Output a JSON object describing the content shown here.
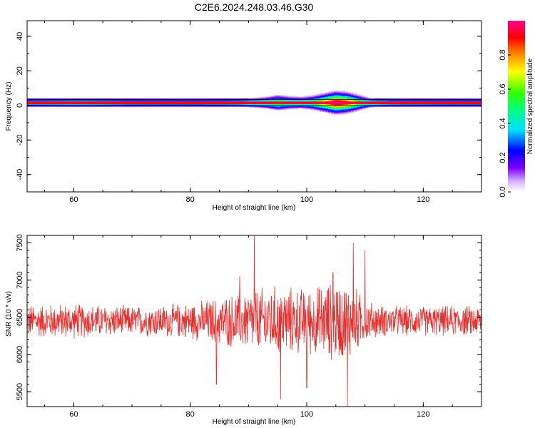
{
  "title": "C2E6.2024.248.03.46.G30",
  "colors": {
    "snr_line": "#e8302f",
    "axis": "#000000"
  },
  "chart_data": [
    {
      "type": "heatmap",
      "xlabel": "Height of straight line (km)",
      "ylabel": "Frequency (Hz)",
      "xlim": [
        52,
        130
      ],
      "ylim": [
        -50,
        49
      ],
      "xticks": [
        "60",
        "80",
        "100",
        "120"
      ],
      "yticks": [
        "40",
        "20",
        "0",
        "-20",
        "-40"
      ],
      "colorbar": {
        "label": "Normalized spectral amplitude",
        "range": [
          0,
          1
        ],
        "ticks": [
          "0.0",
          "0.2",
          "0.4",
          "0.6",
          "0.8"
        ]
      },
      "band": {
        "frequency_hz": 1.5,
        "halfwidth_hz": 2
      },
      "amplitude_by_height": {
        "height_km": [
          52,
          60,
          65,
          70,
          80,
          88,
          93,
          95,
          97,
          99,
          101,
          103,
          105,
          107,
          109,
          111,
          115,
          120,
          130
        ],
        "value": [
          0.25,
          0.3,
          0.28,
          0.22,
          0.2,
          0.25,
          0.45,
          0.6,
          0.5,
          0.45,
          0.55,
          0.75,
          0.95,
          0.85,
          0.6,
          0.35,
          0.25,
          0.22,
          0.2
        ]
      }
    },
    {
      "type": "line",
      "xlabel": "Height of straight line (km)",
      "ylabel": "SNR (10 * v/v)",
      "xlim": [
        52,
        130
      ],
      "ylim": [
        5300,
        7600
      ],
      "xticks": [
        "60",
        "80",
        "100",
        "120"
      ],
      "yticks": [
        "7500",
        "7000",
        "6500",
        "6000",
        "5500"
      ],
      "series": [
        {
          "mean": 6450,
          "amplitude_envelope": {
            "height_km": [
              52,
              60,
              70,
              78,
              82,
              88,
              94,
              100,
              105,
              108,
              110,
              113,
              120,
              130
            ],
            "halfwidth": [
              250,
              260,
              220,
              250,
              300,
              420,
              520,
              480,
              600,
              550,
              300,
              230,
              220,
              230
            ]
          },
          "spikes": [
            {
              "x": 91,
              "y": 7600
            },
            {
              "x": 95.5,
              "y": 5400
            },
            {
              "x": 84.5,
              "y": 5600
            },
            {
              "x": 107,
              "y": 5300
            },
            {
              "x": 108,
              "y": 7500
            },
            {
              "x": 110,
              "y": 7400
            },
            {
              "x": 104.5,
              "y": 7100
            },
            {
              "x": 100,
              "y": 5550
            },
            {
              "x": 88.5,
              "y": 7050
            }
          ]
        }
      ]
    }
  ]
}
